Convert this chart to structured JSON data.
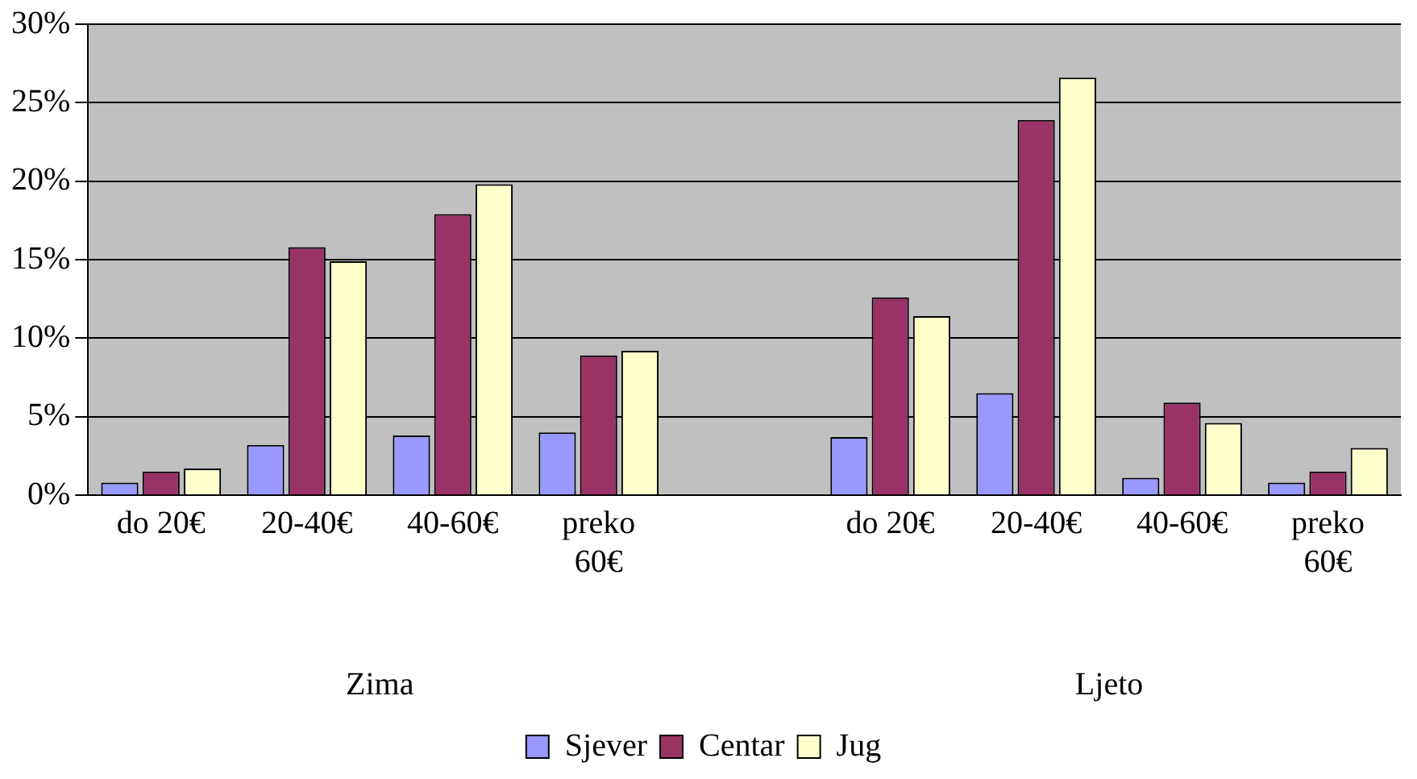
{
  "chart_data": {
    "type": "bar",
    "categories": [
      "do 20€",
      "20-40€",
      "40-60€",
      "preko 60€",
      null,
      "do 20€",
      "20-40€",
      "40-60€",
      "preko 60€"
    ],
    "series": [
      {
        "name": "Sjever",
        "color": "#9999ff",
        "values": [
          0.8,
          3.2,
          3.8,
          4.0,
          null,
          3.7,
          6.5,
          1.1,
          0.8
        ]
      },
      {
        "name": "Centar",
        "color": "#993366",
        "values": [
          1.5,
          15.8,
          17.9,
          8.9,
          null,
          12.6,
          23.9,
          5.9,
          1.5
        ]
      },
      {
        "name": "Jug",
        "color": "#ffffcc",
        "values": [
          1.7,
          14.9,
          19.8,
          9.2,
          null,
          11.4,
          26.6,
          4.6,
          3.0
        ]
      }
    ],
    "annotations": [
      "Zima",
      "Ljeto"
    ],
    "ylim": [
      0,
      30
    ],
    "yticks": [
      {
        "value": 0,
        "label": "0%"
      },
      {
        "value": 5,
        "label": "5%"
      },
      {
        "value": 10,
        "label": "10%"
      },
      {
        "value": 15,
        "label": "15%"
      },
      {
        "value": 20,
        "label": "20%"
      },
      {
        "value": 25,
        "label": "25%"
      },
      {
        "value": 30,
        "label": "30%"
      }
    ],
    "grid": "y",
    "legend": "bottom"
  }
}
